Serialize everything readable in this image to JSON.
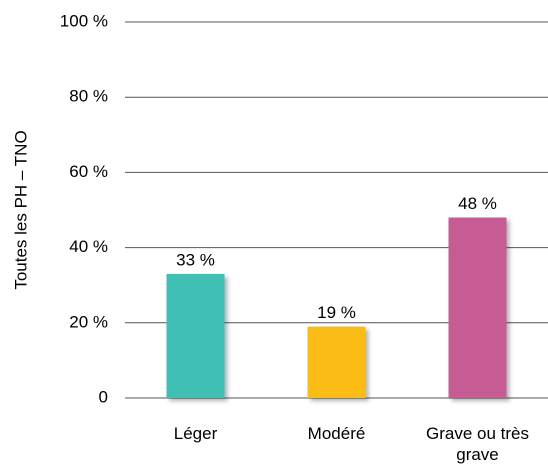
{
  "chart_data": {
    "type": "bar",
    "ylabel": "Toutes les PH – TNO",
    "categories": [
      "Léger",
      "Modéré",
      "Grave ou très grave"
    ],
    "values": [
      33,
      19,
      48
    ],
    "value_labels": [
      "33 %",
      "19 %",
      "48 %"
    ],
    "colors": [
      "#40bfb4",
      "#fbbc14",
      "#c75b94"
    ],
    "ylim": [
      0,
      100
    ],
    "yticks": [
      0,
      {
        "value": 20,
        "label": "20 %"
      },
      {
        "value": 40,
        "label": "40 %"
      },
      {
        "value": 60,
        "label": "60 %"
      },
      {
        "value": 80,
        "label": "80 %"
      },
      {
        "value": 100,
        "label": "100 %"
      }
    ],
    "grid": true
  }
}
